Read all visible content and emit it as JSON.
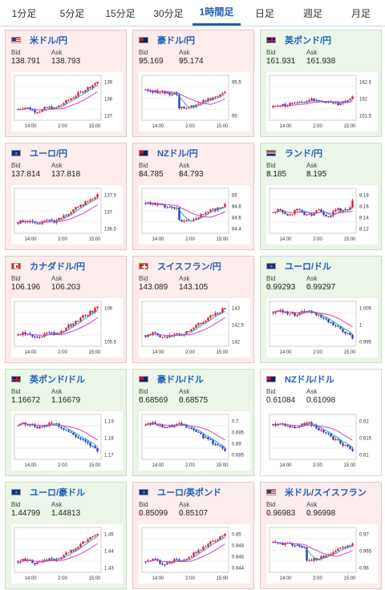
{
  "tabs": [
    "1分足",
    "5分足",
    "15分足",
    "30分足",
    "1時間足",
    "日足",
    "週足",
    "月足"
  ],
  "active_tab": 4,
  "bid_label": "Bid",
  "ask_label": "Ask",
  "x_ticks": [
    "14:00",
    "2:00",
    "15:00"
  ],
  "colors": {
    "up_candle": "#e8192c",
    "down_candle": "#1f3fbf",
    "ma_fast": "#29a3c7",
    "ma_slow": "#d43fc4",
    "bid_down": "#d0202c",
    "bid_up": "#2a9d2a"
  },
  "cards": [
    {
      "pair": "米ドル/円",
      "bg": "down",
      "flag": "us",
      "bid": "138.791",
      "ask": "138.793",
      "dir": "down",
      "y_ticks": [
        "139",
        "138",
        "137"
      ],
      "trend": "rise"
    },
    {
      "pair": "豪ドル/円",
      "bg": "down",
      "flag": "au",
      "bid": "95.169",
      "ask": "95.174",
      "dir": "down",
      "y_ticks": [
        "95.5",
        "95"
      ],
      "trend": "dip_recover"
    },
    {
      "pair": "英ポンド/円",
      "bg": "up",
      "flag": "gb",
      "bid": "161.931",
      "ask": "161.938",
      "dir": "up",
      "y_ticks": [
        "162.5",
        "162",
        "161.5"
      ],
      "trend": "spike_mid"
    },
    {
      "pair": "ユーロ/円",
      "bg": "down",
      "flag": "eu",
      "bid": "137.814",
      "ask": "137.818",
      "dir": "down",
      "y_ticks": [
        "137.5",
        "137",
        "136.5"
      ],
      "trend": "rise"
    },
    {
      "pair": "NZドル/円",
      "bg": "down",
      "flag": "nz",
      "bid": "84.785",
      "ask": "84.793",
      "dir": "down",
      "y_ticks": [
        "85",
        "84.8",
        "84.6",
        "84.4"
      ],
      "trend": "dip_recover"
    },
    {
      "pair": "ランド/円",
      "bg": "up",
      "flag": "za",
      "bid": "8.185",
      "ask": "8.195",
      "dir": "up",
      "y_ticks": [
        "8.18",
        "8.16",
        "8.14",
        "8.12"
      ],
      "trend": "choppy_up"
    },
    {
      "pair": "カナダドル/円",
      "bg": "down",
      "flag": "ca",
      "bid": "106.196",
      "ask": "106.203",
      "dir": "down",
      "y_ticks": [
        "106",
        "105.5"
      ],
      "trend": "rise"
    },
    {
      "pair": "スイスフラン/円",
      "bg": "down",
      "flag": "ch",
      "bid": "143.089",
      "ask": "143.105",
      "dir": "down",
      "y_ticks": [
        "143",
        "142.5",
        "142"
      ],
      "trend": "rise"
    },
    {
      "pair": "ユーロ/ドル",
      "bg": "up",
      "flag": "eu",
      "bid": "0.99293",
      "ask": "0.99297",
      "dir": "up",
      "y_ticks": [
        "1.005",
        "1",
        "0.995"
      ],
      "trend": "fall"
    },
    {
      "pair": "英ポンド/ドル",
      "bg": "up",
      "flag": "gb",
      "bid": "1.16672",
      "ask": "1.16679",
      "dir": "up",
      "y_ticks": [
        "1.19",
        "1.18",
        "1.17"
      ],
      "trend": "fall"
    },
    {
      "pair": "豪ドル/ドル",
      "bg": "up",
      "flag": "au",
      "bid": "0.68569",
      "ask": "0.68575",
      "dir": "up",
      "y_ticks": [
        "0.7",
        "0.695",
        "0.69",
        "0.685"
      ],
      "trend": "fall"
    },
    {
      "pair": "NZドル/ドル",
      "bg": "flat",
      "flag": "nz",
      "bid": "0.61084",
      "ask": "0.61098",
      "dir": "none",
      "y_ticks": [
        "0.62",
        "0.615",
        "0.61"
      ],
      "trend": "fall"
    },
    {
      "pair": "ユーロ/豪ドル",
      "bg": "up",
      "flag": "eu",
      "bid": "1.44799",
      "ask": "1.44813",
      "dir": "up",
      "y_ticks": [
        "1.45",
        "1.44",
        "1.43"
      ],
      "trend": "rise"
    },
    {
      "pair": "ユーロ/英ポンド",
      "bg": "down",
      "flag": "eu",
      "bid": "0.85099",
      "ask": "0.85107",
      "dir": "down",
      "y_ticks": [
        "0.85",
        "0.848",
        "0.846",
        "0.844"
      ],
      "trend": "rise"
    },
    {
      "pair": "米ドル/スイスフラン",
      "bg": "down",
      "flag": "us",
      "bid": "0.96983",
      "ask": "0.96998",
      "dir": "down",
      "y_ticks": [
        "0.97",
        "0.965",
        "0.96"
      ],
      "trend": "dip_recover"
    }
  ]
}
